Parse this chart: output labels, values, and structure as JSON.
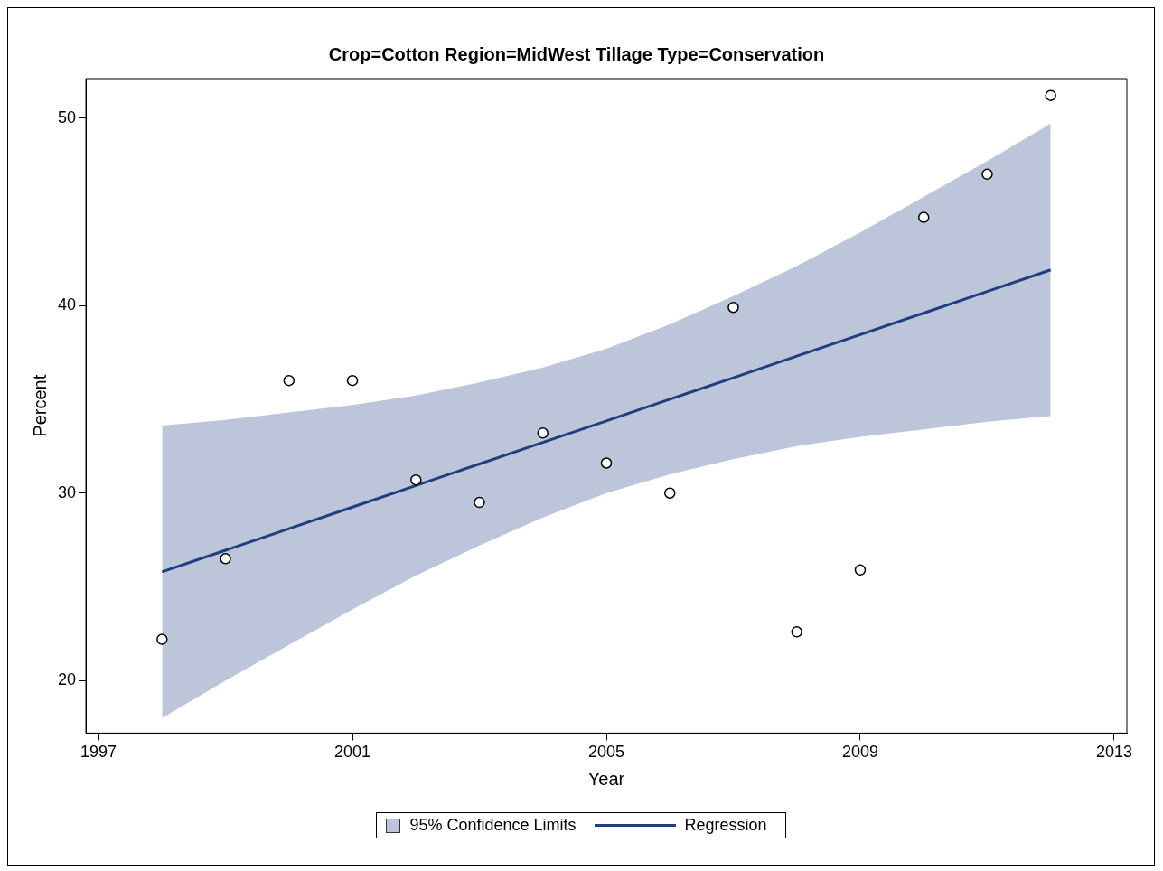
{
  "chart_data": {
    "type": "scatter",
    "title": "Crop=Cotton Region=MidWest Tillage Type=Conservation",
    "xlabel": "Year",
    "ylabel": "Percent",
    "x": [
      1998,
      1999,
      2000,
      2001,
      2002,
      2003,
      2004,
      2005,
      2006,
      2007,
      2008,
      2009,
      2010,
      2011,
      2012
    ],
    "series": [
      {
        "type": "line",
        "name": "Regression",
        "color": "#1f3f7f",
        "marker": "none",
        "values": [
          25.8,
          26.95,
          28.1,
          29.25,
          30.4,
          31.55,
          32.7,
          33.85,
          35.0,
          36.15,
          37.3,
          38.45,
          39.6,
          40.75,
          41.9
        ],
        "lower": [
          18.0,
          20.0,
          21.9,
          23.8,
          25.6,
          27.2,
          28.7,
          30.0,
          31.0,
          31.8,
          32.5,
          33.0,
          33.4,
          33.8,
          34.1
        ],
        "upper": [
          33.6,
          33.9,
          34.3,
          34.7,
          35.2,
          35.9,
          36.7,
          37.7,
          39.0,
          40.5,
          42.1,
          43.9,
          45.8,
          47.7,
          49.7
        ]
      },
      {
        "type": "scatter",
        "color": "#000000",
        "values": [
          22.2,
          26.5,
          36.0,
          36.0,
          30.7,
          29.5,
          33.2,
          31.6,
          30.0,
          39.9,
          22.6,
          25.9,
          44.7,
          47.0,
          51.2
        ]
      }
    ],
    "annotations": [
      "95% Confidence Limits"
    ],
    "xlim": [
      1996.8,
      2013.2
    ],
    "ylim": [
      17.2,
      52.1
    ],
    "xticks": [
      1997,
      2001,
      2005,
      2009,
      2013
    ],
    "yticks": [
      20,
      30,
      40,
      50
    ],
    "grid": false,
    "legend": "bottom",
    "marker": "circle",
    "line_style": "solid"
  }
}
